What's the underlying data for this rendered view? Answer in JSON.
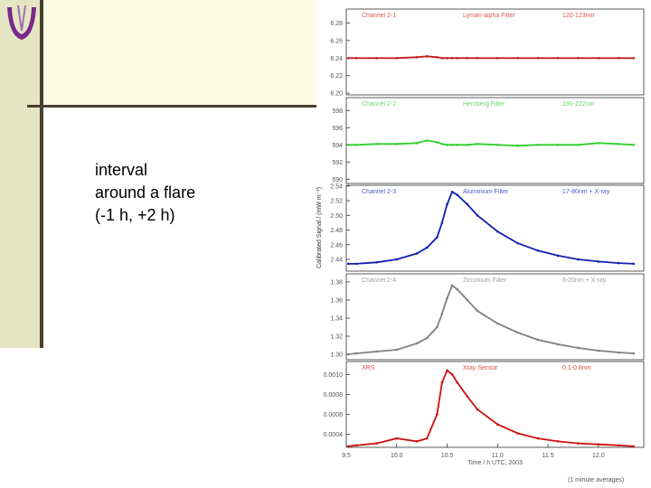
{
  "slide": {
    "text": [
      "interval",
      "around a flare",
      "(-1 h, +2 h)"
    ]
  },
  "chart_data": [
    {
      "type": "line",
      "title": "Channel 2-1",
      "subtitle": "Lyman-alpha Filter",
      "annotation": "120-123nm",
      "color": "#c0201c",
      "xlim": [
        9.5,
        12.45
      ],
      "ylim": [
        6.198,
        6.296
      ],
      "yticks": [
        {
          "value": 6.2,
          "label": "6.20"
        },
        {
          "value": 6.22,
          "label": "6.22"
        },
        {
          "value": 6.24,
          "label": "6.24"
        },
        {
          "value": 6.26,
          "label": "6.26"
        },
        {
          "value": 6.28,
          "label": "6.28"
        }
      ],
      "x": [
        9.52,
        9.6,
        9.8,
        10.0,
        10.2,
        10.3,
        10.4,
        10.45,
        10.5,
        10.55,
        10.6,
        10.7,
        10.8,
        11.0,
        11.2,
        11.4,
        11.6,
        11.8,
        12.0,
        12.2,
        12.35
      ],
      "values": [
        6.24,
        6.24,
        6.24,
        6.24,
        6.241,
        6.242,
        6.241,
        6.24,
        6.24,
        6.24,
        6.24,
        6.24,
        6.24,
        6.24,
        6.24,
        6.24,
        6.24,
        6.24,
        6.24,
        6.24,
        6.24
      ]
    },
    {
      "type": "line",
      "title": "Channel 2-2",
      "subtitle": "Herzberg Filter",
      "annotation": "190-222nm",
      "color": "#30d030",
      "xlim": [
        9.5,
        12.45
      ],
      "ylim": [
        589.5,
        599.5
      ],
      "yticks": [
        590,
        592,
        594,
        596,
        598
      ],
      "x": [
        9.52,
        9.6,
        9.8,
        10.0,
        10.2,
        10.3,
        10.4,
        10.45,
        10.5,
        10.55,
        10.6,
        10.7,
        10.8,
        11.0,
        11.2,
        11.4,
        11.6,
        11.8,
        12.0,
        12.2,
        12.35
      ],
      "values": [
        594.0,
        594.0,
        594.1,
        594.1,
        594.2,
        594.5,
        594.3,
        594.1,
        594.0,
        594.0,
        594.0,
        594.0,
        594.1,
        594.0,
        593.9,
        594.0,
        594.0,
        594.0,
        594.2,
        594.1,
        594.0
      ]
    },
    {
      "type": "line",
      "title": "Channel 2-3",
      "subtitle": "Aluminium Filter",
      "annotation": "17-80nm + X-ray",
      "color": "#1020b0",
      "ylabel": "Calibrated Signal / (mW m⁻²)",
      "xlim": [
        9.5,
        12.45
      ],
      "ylim": [
        2.424,
        2.541
      ],
      "yticks": [
        {
          "value": 2.44,
          "label": "2.44"
        },
        {
          "value": 2.46,
          "label": "2.46"
        },
        {
          "value": 2.48,
          "label": "2.48"
        },
        {
          "value": 2.5,
          "label": "2.50"
        },
        {
          "value": 2.52,
          "label": "2.52"
        },
        {
          "value": 2.54,
          "label": "2.54"
        }
      ],
      "x": [
        9.52,
        9.6,
        9.8,
        10.0,
        10.2,
        10.3,
        10.4,
        10.45,
        10.5,
        10.55,
        10.6,
        10.7,
        10.8,
        11.0,
        11.2,
        11.4,
        11.6,
        11.8,
        12.0,
        12.2,
        12.35
      ],
      "values": [
        2.434,
        2.434,
        2.436,
        2.44,
        2.448,
        2.456,
        2.47,
        2.49,
        2.515,
        2.532,
        2.528,
        2.515,
        2.5,
        2.478,
        2.462,
        2.452,
        2.445,
        2.44,
        2.437,
        2.435,
        2.434
      ]
    },
    {
      "type": "line",
      "title": "Channel 2-4",
      "subtitle": "Zirconium Filter",
      "annotation": "6-20nm + X-ray",
      "color": "#808080",
      "xlim": [
        9.5,
        12.45
      ],
      "ylim": [
        1.294,
        1.389
      ],
      "yticks": [
        {
          "value": 1.3,
          "label": "1.30"
        },
        {
          "value": 1.32,
          "label": "1.32"
        },
        {
          "value": 1.34,
          "label": "1.34"
        },
        {
          "value": 1.36,
          "label": "1.36"
        },
        {
          "value": 1.38,
          "label": "1.38"
        }
      ],
      "x": [
        9.52,
        9.6,
        9.8,
        10.0,
        10.2,
        10.3,
        10.4,
        10.45,
        10.5,
        10.55,
        10.6,
        10.7,
        10.8,
        11.0,
        11.2,
        11.4,
        11.6,
        11.8,
        12.0,
        12.2,
        12.35
      ],
      "values": [
        1.3,
        1.301,
        1.303,
        1.305,
        1.312,
        1.318,
        1.33,
        1.345,
        1.362,
        1.376,
        1.372,
        1.36,
        1.348,
        1.334,
        1.324,
        1.316,
        1.311,
        1.307,
        1.304,
        1.302,
        1.301
      ]
    },
    {
      "type": "line",
      "title": "XRS",
      "subtitle": "Xray Sensor",
      "annotation": "0.1-0.8nm",
      "color": "#d01010",
      "xlabel": "Time / h UTC, 2003",
      "note": "(1 minute averages)",
      "xlim": [
        9.5,
        12.45
      ],
      "ylim": [
        0.00027,
        0.00113
      ],
      "xticks": [
        9.5,
        {
          "value": 10.0,
          "label": "10.0"
        },
        10.5,
        {
          "value": 11.0,
          "label": "11.0"
        },
        11.5,
        {
          "value": 12.0,
          "label": "12.0"
        }
      ],
      "yticks": [
        {
          "value": 0.0004,
          "label": "0.0004"
        },
        {
          "value": 0.0006,
          "label": "0.0006"
        },
        {
          "value": 0.0008,
          "label": "0.0008"
        },
        {
          "value": 0.001,
          "label": "0.0010"
        }
      ],
      "x": [
        9.52,
        9.6,
        9.8,
        10.0,
        10.2,
        10.3,
        10.4,
        10.45,
        10.5,
        10.55,
        10.6,
        10.7,
        10.8,
        11.0,
        11.2,
        11.4,
        11.6,
        11.8,
        12.0,
        12.2,
        12.35
      ],
      "values": [
        0.00028,
        0.00029,
        0.00031,
        0.00036,
        0.00033,
        0.00036,
        0.0006,
        0.00092,
        0.00104,
        0.001,
        0.00092,
        0.00078,
        0.00065,
        0.0005,
        0.00041,
        0.00036,
        0.00033,
        0.00031,
        0.0003,
        0.00029,
        0.00028
      ]
    }
  ]
}
